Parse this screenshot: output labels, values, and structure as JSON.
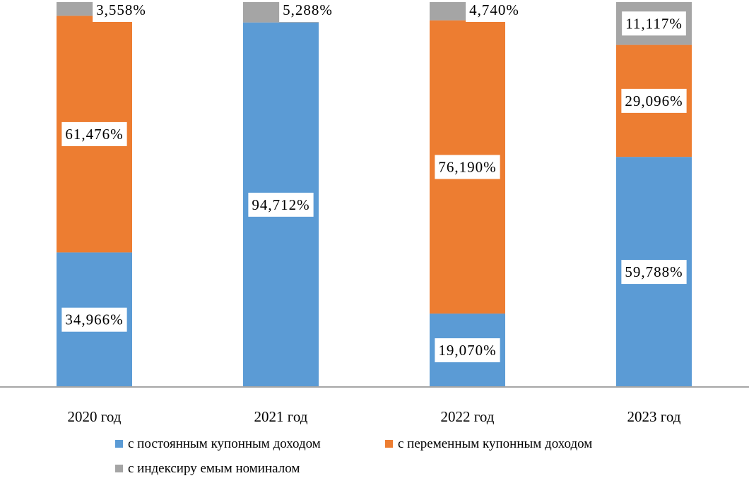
{
  "chart_data": {
    "type": "bar",
    "stacked": true,
    "percent_stacked": true,
    "categories": [
      "2020 год",
      "2021 год",
      "2022 год",
      "2023 год"
    ],
    "series": [
      {
        "name": "с постоянным купонным доходом",
        "color": "#5B9BD5",
        "values": [
          34.966,
          94.712,
          19.07,
          59.788
        ],
        "labels": [
          "34,966%",
          "94,712%",
          "19,070%",
          "59,788%"
        ]
      },
      {
        "name": "с переменным купонным доходом",
        "color": "#ED7D31",
        "values": [
          61.476,
          0,
          76.19,
          29.096
        ],
        "labels": [
          "61,476%",
          "",
          "76,190%",
          "29,096%"
        ]
      },
      {
        "name": "с индексиру емым номиналом",
        "color": "#A5A5A5",
        "values": [
          3.558,
          5.288,
          4.74,
          11.117
        ],
        "labels": [
          "3,558%",
          "5,288%",
          "4,740%",
          "11,117%"
        ]
      }
    ],
    "ylim": [
      0,
      100
    ],
    "grid": false,
    "legend_position": "bottom",
    "title": "",
    "xlabel": "",
    "ylabel": ""
  }
}
